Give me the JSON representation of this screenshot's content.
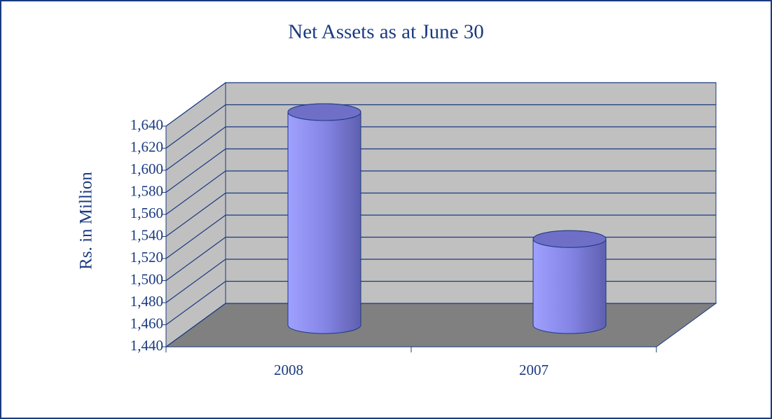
{
  "chart_data": {
    "type": "bar3d",
    "title": "Net Assets as at June 30",
    "y_label": "Rs. in Million",
    "categories": [
      "2008",
      "2007"
    ],
    "values": [
      1633,
      1518
    ],
    "color": "#8c8cf0",
    "ylim": [
      1440,
      1640
    ],
    "yticks": [
      {
        "value": 1440,
        "label": "1,440"
      },
      {
        "value": 1460,
        "label": "1,460"
      },
      {
        "value": 1480,
        "label": "1,480"
      },
      {
        "value": 1500,
        "label": "1,500"
      },
      {
        "value": 1520,
        "label": "1,520"
      },
      {
        "value": 1540,
        "label": "1,540"
      },
      {
        "value": 1560,
        "label": "1,560"
      },
      {
        "value": 1580,
        "label": "1,580"
      },
      {
        "value": 1600,
        "label": "1,600"
      },
      {
        "value": 1620,
        "label": "1,620"
      },
      {
        "value": 1640,
        "label": "1,640"
      }
    ],
    "grid": true
  }
}
